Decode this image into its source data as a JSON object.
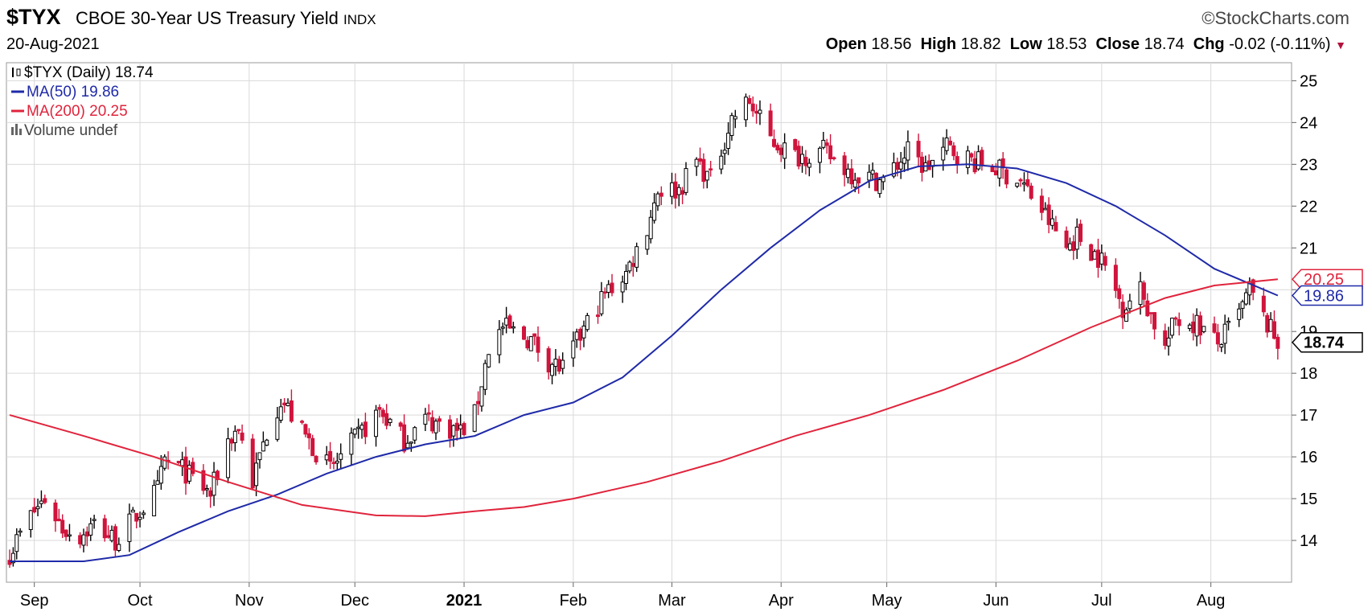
{
  "header": {
    "symbol": "$TYX",
    "description": "CBOE 30-Year US Treasury Yield",
    "exchange": "INDX",
    "date": "20-Aug-2021",
    "brand": "©StockCharts.com",
    "open_label": "Open",
    "open_value": "18.56",
    "high_label": "High",
    "high_value": "18.82",
    "low_label": "Low",
    "low_value": "18.53",
    "close_label": "Close",
    "close_value": "18.74",
    "chg_label": "Chg",
    "chg_value": "-0.02 (-0.11%)"
  },
  "legend": {
    "price": "$TYX (Daily) 18.74",
    "ma50": "MA(50) 19.86",
    "ma200": "MA(200) 20.25",
    "volume": "Volume undef"
  },
  "colors": {
    "up_candle": "#000000",
    "down_candle": "#d0143c",
    "ma50": "#1f2aa8",
    "ma200": "#e0243c",
    "grid": "#d9d9d9"
  },
  "chart_data": {
    "type": "candlestick",
    "x_range": [
      "2020-08-25",
      "2021-08-23"
    ],
    "ylim": [
      13,
      25.2
    ],
    "y_ticks": [
      14,
      15,
      16,
      17,
      18,
      19,
      20,
      21,
      22,
      23,
      24,
      25
    ],
    "x_ticks": [
      {
        "label": "Sep",
        "date": "2020-09-01"
      },
      {
        "label": "Oct",
        "date": "2020-10-01"
      },
      {
        "label": "Nov",
        "date": "2020-11-01"
      },
      {
        "label": "Dec",
        "date": "2020-12-01"
      },
      {
        "label": "2021",
        "date": "2021-01-01",
        "bold": true
      },
      {
        "label": "Feb",
        "date": "2021-02-01"
      },
      {
        "label": "Mar",
        "date": "2021-03-01"
      },
      {
        "label": "Apr",
        "date": "2021-04-01"
      },
      {
        "label": "May",
        "date": "2021-05-01"
      },
      {
        "label": "Jun",
        "date": "2021-06-01"
      },
      {
        "label": "Jul",
        "date": "2021-07-01"
      },
      {
        "label": "Aug",
        "date": "2021-08-01"
      }
    ],
    "right_labels": [
      {
        "text": "20.25",
        "value": 20.25,
        "color": "#e0243c"
      },
      {
        "text": "19.86",
        "value": 19.86,
        "color": "#1f2aa8"
      },
      {
        "text": "18.74",
        "value": 18.74,
        "color": "#000000",
        "bold": true
      }
    ],
    "price_path": [
      [
        "2020-08-25",
        13.7
      ],
      [
        "2020-08-31",
        14.6
      ],
      [
        "2020-09-04",
        15.0
      ],
      [
        "2020-09-09",
        14.3
      ],
      [
        "2020-09-14",
        14.1
      ],
      [
        "2020-09-18",
        14.4
      ],
      [
        "2020-09-24",
        14.0
      ],
      [
        "2020-09-30",
        14.6
      ],
      [
        "2020-10-06",
        15.2
      ],
      [
        "2020-10-08",
        15.9
      ],
      [
        "2020-10-13",
        15.7
      ],
      [
        "2020-10-21",
        15.1
      ],
      [
        "2020-10-26",
        16.4
      ],
      [
        "2020-10-29",
        16.7
      ],
      [
        "2020-11-02",
        15.4
      ],
      [
        "2020-11-06",
        16.6
      ],
      [
        "2020-11-10",
        17.4
      ],
      [
        "2020-11-16",
        16.6
      ],
      [
        "2020-11-24",
        15.7
      ],
      [
        "2020-12-01",
        16.4
      ],
      [
        "2020-12-08",
        17.1
      ],
      [
        "2020-12-15",
        16.4
      ],
      [
        "2020-12-21",
        16.9
      ],
      [
        "2020-12-31",
        16.6
      ],
      [
        "2021-01-04",
        17.0
      ],
      [
        "2021-01-08",
        18.6
      ],
      [
        "2021-01-12",
        19.1
      ],
      [
        "2021-01-20",
        18.8
      ],
      [
        "2021-01-25",
        18.3
      ],
      [
        "2021-01-29",
        18.1
      ],
      [
        "2021-02-05",
        19.2
      ],
      [
        "2021-02-10",
        19.9
      ],
      [
        "2021-02-16",
        20.4
      ],
      [
        "2021-02-22",
        21.5
      ],
      [
        "2021-02-25",
        22.4
      ],
      [
        "2021-03-03",
        22.4
      ],
      [
        "2021-03-08",
        23.1
      ],
      [
        "2021-03-12",
        22.6
      ],
      [
        "2021-03-18",
        24.1
      ],
      [
        "2021-03-23",
        24.5
      ],
      [
        "2021-03-29",
        23.6
      ],
      [
        "2021-04-05",
        23.2
      ],
      [
        "2021-04-13",
        23.3
      ],
      [
        "2021-04-21",
        22.8
      ],
      [
        "2021-04-30",
        22.6
      ],
      [
        "2021-05-07",
        23.3
      ],
      [
        "2021-05-12",
        22.9
      ],
      [
        "2021-05-18",
        23.4
      ],
      [
        "2021-05-25",
        23.1
      ],
      [
        "2021-06-01",
        22.9
      ],
      [
        "2021-06-08",
        22.6
      ],
      [
        "2021-06-14",
        21.9
      ],
      [
        "2021-06-21",
        21.0
      ],
      [
        "2021-06-24",
        21.3
      ],
      [
        "2021-07-01",
        20.7
      ],
      [
        "2021-07-07",
        19.6
      ],
      [
        "2021-07-12",
        20.0
      ],
      [
        "2021-07-19",
        18.6
      ],
      [
        "2021-07-22",
        19.3
      ],
      [
        "2021-07-28",
        19.2
      ],
      [
        "2021-08-03",
        18.7
      ],
      [
        "2021-08-09",
        19.4
      ],
      [
        "2021-08-12",
        20.0
      ],
      [
        "2021-08-16",
        19.3
      ],
      [
        "2021-08-20",
        18.74
      ]
    ],
    "series": [
      {
        "name": "MA(50)",
        "color": "#1f2aa8",
        "points": [
          [
            "2020-08-25",
            13.5
          ],
          [
            "2020-09-15",
            13.5
          ],
          [
            "2020-09-28",
            13.65
          ],
          [
            "2020-10-12",
            14.2
          ],
          [
            "2020-10-26",
            14.7
          ],
          [
            "2020-11-09",
            15.1
          ],
          [
            "2020-11-23",
            15.6
          ],
          [
            "2020-12-07",
            16.0
          ],
          [
            "2020-12-21",
            16.3
          ],
          [
            "2021-01-04",
            16.5
          ],
          [
            "2021-01-18",
            17.0
          ],
          [
            "2021-02-01",
            17.3
          ],
          [
            "2021-02-15",
            17.9
          ],
          [
            "2021-03-01",
            18.9
          ],
          [
            "2021-03-15",
            20.0
          ],
          [
            "2021-03-29",
            21.0
          ],
          [
            "2021-04-12",
            21.9
          ],
          [
            "2021-04-26",
            22.6
          ],
          [
            "2021-05-10",
            22.95
          ],
          [
            "2021-05-24",
            23.0
          ],
          [
            "2021-06-07",
            22.9
          ],
          [
            "2021-06-21",
            22.55
          ],
          [
            "2021-07-05",
            22.0
          ],
          [
            "2021-07-19",
            21.3
          ],
          [
            "2021-08-02",
            20.5
          ],
          [
            "2021-08-20",
            19.86
          ]
        ]
      },
      {
        "name": "MA(200)",
        "color": "#e0243c",
        "points": [
          [
            "2020-08-25",
            17.0
          ],
          [
            "2020-09-15",
            16.5
          ],
          [
            "2020-10-05",
            16.0
          ],
          [
            "2020-10-26",
            15.4
          ],
          [
            "2020-11-16",
            14.85
          ],
          [
            "2020-12-07",
            14.6
          ],
          [
            "2020-12-21",
            14.58
          ],
          [
            "2021-01-04",
            14.7
          ],
          [
            "2021-01-18",
            14.8
          ],
          [
            "2021-02-01",
            15.0
          ],
          [
            "2021-02-22",
            15.4
          ],
          [
            "2021-03-15",
            15.9
          ],
          [
            "2021-04-05",
            16.5
          ],
          [
            "2021-04-26",
            17.0
          ],
          [
            "2021-05-17",
            17.6
          ],
          [
            "2021-06-07",
            18.3
          ],
          [
            "2021-06-28",
            19.1
          ],
          [
            "2021-07-19",
            19.8
          ],
          [
            "2021-08-02",
            20.1
          ],
          [
            "2021-08-20",
            20.25
          ]
        ]
      }
    ]
  }
}
